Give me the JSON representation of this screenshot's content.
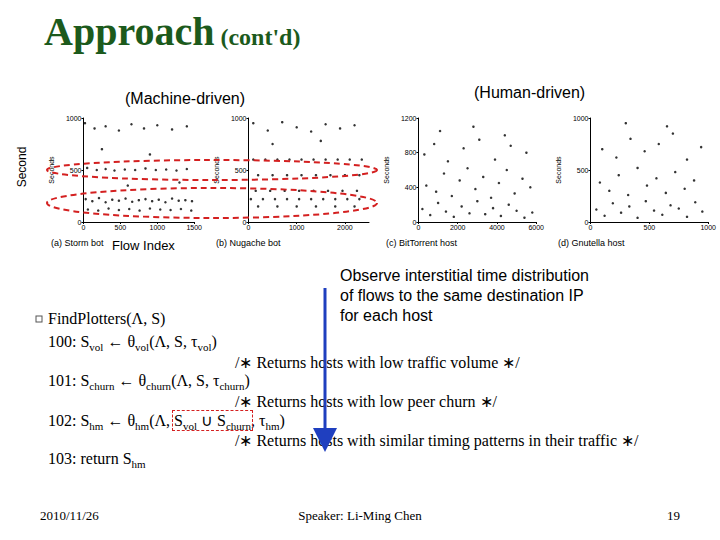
{
  "title": {
    "main": "Approach",
    "suffix": "(cont'd)"
  },
  "group_labels": [
    "(Machine-driven)",
    "(Human-driven)"
  ],
  "side_label": "Second",
  "flow_label": "Flow Index",
  "chart_data": [
    {
      "type": "scatter",
      "title": "(a) Storm bot",
      "y_label": "Seconds",
      "color": "#000000",
      "marker": "circle",
      "grid": false,
      "xlim": [
        0,
        1500
      ],
      "xticks": [
        0,
        500,
        1000,
        1500
      ],
      "ylim": [
        0,
        1000
      ],
      "yticks": [
        0,
        500,
        1000
      ],
      "x": [
        20,
        150,
        300,
        480,
        650,
        820,
        1000,
        1200,
        1400,
        50,
        180,
        300,
        420,
        560,
        700,
        840,
        980,
        1120,
        1260,
        1400,
        30,
        120,
        210,
        300,
        390,
        480,
        570,
        660,
        750,
        840,
        930,
        1020,
        1110,
        1200,
        1290,
        1380,
        1470,
        60,
        200,
        340,
        480,
        620,
        760,
        900,
        1040,
        1180,
        1320,
        1460,
        250,
        900,
        1300,
        600
      ],
      "values": [
        950,
        900,
        920,
        880,
        940,
        900,
        930,
        890,
        920,
        520,
        500,
        510,
        495,
        505,
        500,
        515,
        500,
        505,
        495,
        510,
        220,
        200,
        230,
        190,
        215,
        205,
        225,
        195,
        210,
        220,
        200,
        215,
        190,
        225,
        205,
        210,
        200,
        120,
        110,
        130,
        115,
        125,
        110,
        130,
        120,
        115,
        125,
        110,
        700,
        650,
        380,
        350
      ]
    },
    {
      "type": "scatter",
      "title": "(b) Nugache bot",
      "y_label": "Seconds",
      "color": "#000000",
      "marker": "circle",
      "grid": false,
      "xlim": [
        0,
        2500
      ],
      "xticks": [
        0,
        1000,
        2000
      ],
      "ylim": [
        0,
        1000
      ],
      "yticks": [
        0,
        500,
        1000
      ],
      "x": [
        100,
        400,
        700,
        1000,
        1300,
        1600,
        1900,
        2200,
        100,
        350,
        600,
        850,
        1100,
        1350,
        1600,
        1850,
        2100,
        2350,
        200,
        500,
        800,
        1100,
        1400,
        1700,
        2000,
        2300,
        150,
        450,
        750,
        1050,
        1350,
        1650,
        1950,
        2250,
        50,
        300,
        550,
        800,
        1050,
        1300,
        1550,
        1800,
        2050,
        2300,
        200,
        600,
        1000,
        1400,
        1800,
        2200,
        500,
        1500
      ],
      "values": [
        950,
        880,
        960,
        910,
        870,
        940,
        900,
        930,
        600,
        600,
        600,
        600,
        600,
        600,
        600,
        600,
        600,
        600,
        450,
        450,
        450,
        450,
        450,
        450,
        450,
        450,
        300,
        300,
        300,
        300,
        300,
        300,
        300,
        300,
        220,
        220,
        220,
        220,
        220,
        220,
        220,
        220,
        220,
        220,
        150,
        150,
        150,
        150,
        150,
        150,
        750,
        780
      ]
    },
    {
      "type": "scatter",
      "title": "(c) BitTorrent host",
      "y_label": "Seconds",
      "color": "#000000",
      "marker": "circle",
      "grid": false,
      "xlim": [
        0,
        6000
      ],
      "xticks": [
        0,
        2000,
        4000,
        6000
      ],
      "ylim": [
        0,
        1200
      ],
      "yticks": [
        0,
        400,
        800,
        1200
      ],
      "x": [
        200,
        600,
        1000,
        1400,
        1800,
        2200,
        2600,
        3000,
        3400,
        3800,
        4200,
        4600,
        5000,
        5400,
        5800,
        400,
        900,
        1300,
        1700,
        2100,
        2500,
        2900,
        3300,
        3700,
        4100,
        4500,
        4900,
        5300,
        5700,
        300,
        800,
        1500,
        2300,
        3100,
        3900,
        4700,
        5500,
        1100,
        2800,
        4400
      ],
      "values": [
        150,
        80,
        220,
        120,
        60,
        180,
        100,
        240,
        90,
        160,
        70,
        200,
        130,
        50,
        110,
        420,
        350,
        560,
        300,
        480,
        620,
        380,
        520,
        280,
        450,
        600,
        330,
        500,
        400,
        780,
        900,
        700,
        850,
        950,
        720,
        880,
        800,
        1050,
        1100,
        1000
      ]
    },
    {
      "type": "scatter",
      "title": "(d) Gnutella host",
      "y_label": "Seconds",
      "color": "#000000",
      "marker": "circle",
      "grid": false,
      "xlim": [
        0,
        1000
      ],
      "xticks": [
        0,
        500,
        1000
      ],
      "ylim": [
        0,
        1000
      ],
      "yticks": [
        0,
        500,
        1000
      ],
      "x": [
        50,
        120,
        190,
        260,
        330,
        400,
        470,
        540,
        610,
        680,
        750,
        820,
        890,
        950,
        80,
        160,
        240,
        320,
        400,
        480,
        560,
        640,
        720,
        800,
        880,
        100,
        220,
        340,
        460,
        580,
        700,
        820,
        940,
        300,
        650
      ],
      "values": [
        120,
        60,
        180,
        90,
        150,
        40,
        200,
        110,
        70,
        160,
        130,
        50,
        190,
        100,
        380,
        300,
        450,
        260,
        520,
        350,
        420,
        280,
        480,
        320,
        400,
        700,
        620,
        800,
        680,
        750,
        850,
        600,
        720,
        950,
        920
      ]
    }
  ],
  "note": [
    "Observe interstitial time distribution",
    "of flows to the same destination IP",
    "for each host"
  ],
  "code": {
    "header": "FindPlotters(Λ, S)",
    "lines": [
      {
        "num": "100:",
        "tokens": [
          {
            "text": "S"
          },
          {
            "sub": "vol"
          },
          {
            "text": " ← θ"
          },
          {
            "sub": "vol"
          },
          {
            "text": "(Λ, S, τ"
          },
          {
            "sub": "vol"
          },
          {
            "text": ")"
          }
        ]
      },
      {
        "comment": "/∗ Returns hosts with low traffic volume ∗/"
      },
      {
        "num": "101:",
        "tokens": [
          {
            "text": "S"
          },
          {
            "sub": "churn"
          },
          {
            "text": " ← θ"
          },
          {
            "sub": "churn"
          },
          {
            "text": "(Λ, S, τ"
          },
          {
            "sub": "churn"
          },
          {
            "text": ")"
          }
        ]
      },
      {
        "comment": "/∗ Returns hosts with low peer churn ∗/"
      },
      {
        "num": "102:",
        "tokens": [
          {
            "text": "S"
          },
          {
            "sub": "hm"
          },
          {
            "text": " ← θ"
          },
          {
            "sub": "hm"
          },
          {
            "text": "(Λ, "
          },
          {
            "text": "S"
          },
          {
            "sub": "vol"
          },
          {
            "text": " ∪ S"
          },
          {
            "sub": "churn"
          },
          {
            "text": ", τ"
          },
          {
            "sub": "hm"
          },
          {
            "text": ")"
          }
        ]
      },
      {
        "comment": "/∗ Returns hosts with similar timing patterns in their traffic ∗/"
      },
      {
        "num": "103:",
        "tokens": [
          {
            "text": "return S"
          },
          {
            "sub": "hm"
          }
        ]
      }
    ]
  },
  "footer": {
    "date": "2010/11/26",
    "speaker": "Speaker: Li-Ming Chen",
    "page": 19
  }
}
